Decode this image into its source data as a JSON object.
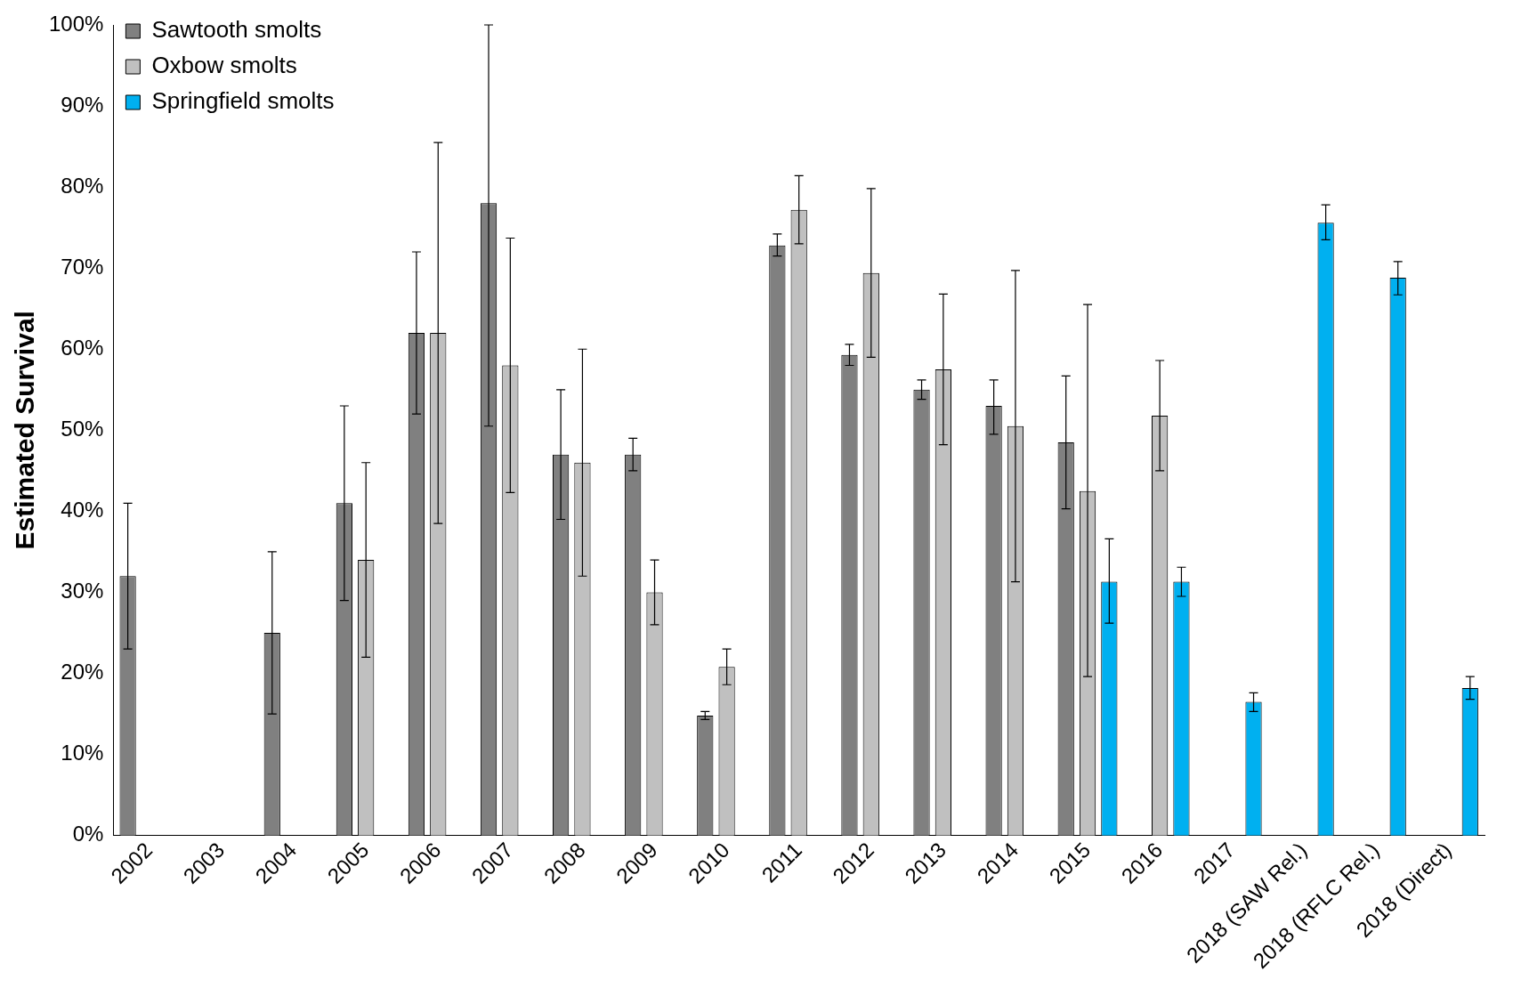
{
  "chart_data": {
    "type": "bar",
    "ylabel": "Estimated Survival",
    "categories": [
      "2002",
      "2003",
      "2004",
      "2005",
      "2006",
      "2007",
      "2008",
      "2009",
      "2010",
      "2011",
      "2012",
      "2013",
      "2014",
      "2015",
      "2016",
      "2017",
      "2018 (SAW Rel.)",
      "2018 (RFLC Rel.)",
      "2018 (Direct)"
    ],
    "series": [
      {
        "name": "Sawtooth smolts",
        "color": "#808080",
        "values": [
          32,
          null,
          25,
          41,
          62,
          78,
          47,
          47,
          14.8,
          72.8,
          59.3,
          55,
          53,
          48.5,
          null,
          null,
          null,
          null,
          null
        ],
        "errors": [
          [
            23,
            41
          ],
          null,
          [
            15,
            35
          ],
          [
            29,
            53
          ],
          [
            52,
            72
          ],
          [
            50.5,
            100
          ],
          [
            39,
            55
          ],
          [
            45,
            49
          ],
          [
            14.3,
            15.3
          ],
          [
            71.5,
            74.2
          ],
          [
            58,
            60.6
          ],
          [
            53.8,
            56.2
          ],
          [
            49.5,
            56.2
          ],
          [
            40.3,
            56.7
          ],
          null,
          null,
          null,
          null,
          null
        ]
      },
      {
        "name": "Oxbow smolts",
        "color": "#c0c0c0",
        "values": [
          null,
          null,
          null,
          34,
          62,
          58,
          46,
          30,
          20.8,
          77.2,
          69.4,
          57.5,
          50.5,
          42.5,
          51.8,
          null,
          null,
          null,
          null
        ],
        "errors": [
          null,
          null,
          null,
          [
            22,
            46
          ],
          [
            38.5,
            85.5
          ],
          [
            42.3,
            73.7
          ],
          [
            32,
            60
          ],
          [
            26,
            34
          ],
          [
            18.6,
            23
          ],
          [
            73,
            81.4
          ],
          [
            59,
            79.8
          ],
          [
            48.2,
            66.8
          ],
          [
            31.3,
            69.7
          ],
          [
            19.6,
            65.5
          ],
          [
            45,
            58.6
          ],
          null,
          null,
          null,
          null
        ]
      },
      {
        "name": "Springfield smolts",
        "color": "#00b0f0",
        "values": [
          null,
          null,
          null,
          null,
          null,
          null,
          null,
          null,
          null,
          null,
          null,
          null,
          null,
          31.3,
          31.3,
          16.5,
          75.6,
          68.8,
          18.2
        ],
        "errors": [
          null,
          null,
          null,
          null,
          null,
          null,
          null,
          null,
          null,
          null,
          null,
          null,
          null,
          [
            26.2,
            36.6
          ],
          [
            29.5,
            33.1
          ],
          [
            15.3,
            17.6
          ],
          [
            73.5,
            77.8
          ],
          [
            66.7,
            70.8
          ],
          [
            16.8,
            19.6
          ]
        ]
      }
    ],
    "ylim": [
      0,
      100
    ],
    "yticks": [
      {
        "value": 0,
        "label": "0%"
      },
      {
        "value": 10,
        "label": "10%"
      },
      {
        "value": 20,
        "label": "20%"
      },
      {
        "value": 30,
        "label": "30%"
      },
      {
        "value": 40,
        "label": "40%"
      },
      {
        "value": 50,
        "label": "50%"
      },
      {
        "value": 60,
        "label": "60%"
      },
      {
        "value": 70,
        "label": "70%"
      },
      {
        "value": 80,
        "label": "80%"
      },
      {
        "value": 90,
        "label": "90%"
      },
      {
        "value": 100,
        "label": "100%"
      }
    ],
    "grid": false,
    "legend": "top left"
  }
}
